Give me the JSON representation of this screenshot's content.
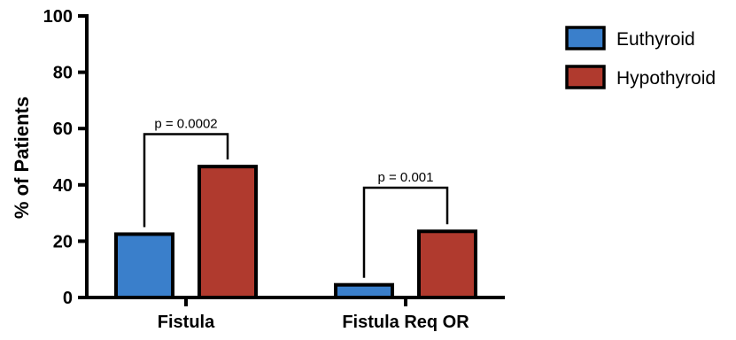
{
  "chart_data": {
    "type": "bar",
    "categories": [
      "Fistula",
      "Fistula Req OR"
    ],
    "series": [
      {
        "name": "Euthyroid",
        "values": [
          22.5,
          4.5
        ],
        "color": "#3a7fcb"
      },
      {
        "name": "Hypothyroid",
        "values": [
          46.5,
          23.5
        ],
        "color": "#b03a2e"
      }
    ],
    "ylabel": "% of Patients",
    "xlabel": "",
    "ylim": [
      0,
      100
    ],
    "yticks": [
      "0",
      "20",
      "40",
      "60",
      "80",
      "100"
    ],
    "legend_position": "top-right",
    "grid": false,
    "annotations": [
      {
        "text": "p = 0.0002",
        "category": "Fistula",
        "bracket_top": 58
      },
      {
        "text": "p = 0.001",
        "category": "Fistula Req OR",
        "bracket_top": 39
      }
    ]
  }
}
